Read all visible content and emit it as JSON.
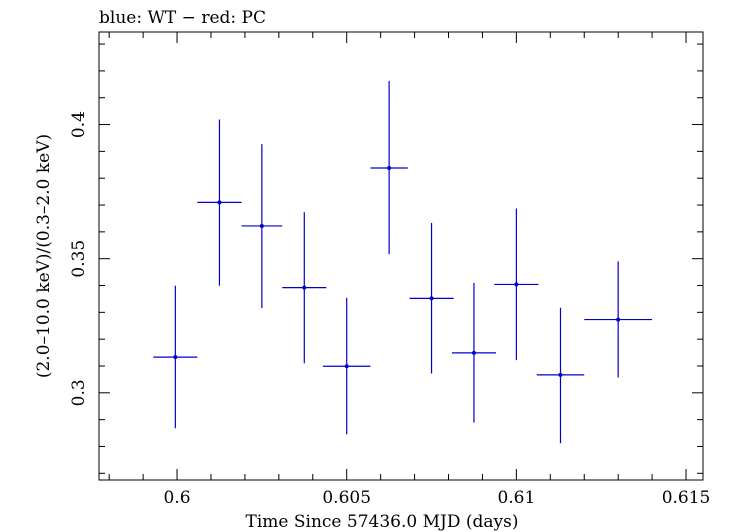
{
  "chart_data": {
    "type": "scatter",
    "title": "blue: WT − red: PC",
    "xlabel": "Time Since 57436.0 MJD (days)",
    "ylabel": "(2.0–10.0 keV)/(0.3–2.0 keV)",
    "xlim": [
      0.5977,
      0.6155
    ],
    "ylim": [
      0.2675,
      0.4345
    ],
    "xticks": [
      0.6,
      0.605,
      0.61,
      0.615
    ],
    "xtick_labels": [
      "0.6",
      "0.605",
      "0.61",
      "0.615"
    ],
    "yticks": [
      0.3,
      0.35,
      0.4
    ],
    "ytick_labels": [
      "0.3",
      "0.35",
      "0.4"
    ],
    "grid": false,
    "series": [
      {
        "color": "#0000cc",
        "points": [
          {
            "x": 0.59995,
            "xerr": 0.00065,
            "y": 0.3133,
            "yerr_low": 0.0265,
            "yerr_high": 0.0266
          },
          {
            "x": 0.60125,
            "xerr": 0.00065,
            "y": 0.371,
            "yerr_low": 0.0311,
            "yerr_high": 0.0309
          },
          {
            "x": 0.6025,
            "xerr": 0.0006,
            "y": 0.3622,
            "yerr_low": 0.0306,
            "yerr_high": 0.0305
          },
          {
            "x": 0.60375,
            "xerr": 0.00065,
            "y": 0.3392,
            "yerr_low": 0.0282,
            "yerr_high": 0.0281
          },
          {
            "x": 0.605,
            "xerr": 0.0007,
            "y": 0.3099,
            "yerr_low": 0.0254,
            "yerr_high": 0.0255
          },
          {
            "x": 0.60625,
            "xerr": 0.00055,
            "y": 0.3838,
            "yerr_low": 0.0321,
            "yerr_high": 0.0325
          },
          {
            "x": 0.6075,
            "xerr": 0.00065,
            "y": 0.3352,
            "yerr_low": 0.028,
            "yerr_high": 0.0281
          },
          {
            "x": 0.60875,
            "xerr": 0.00065,
            "y": 0.3149,
            "yerr_low": 0.026,
            "yerr_high": 0.0261
          },
          {
            "x": 0.61,
            "xerr": 0.00065,
            "y": 0.3404,
            "yerr_low": 0.0282,
            "yerr_high": 0.0283
          },
          {
            "x": 0.6113,
            "xerr": 0.0007,
            "y": 0.3067,
            "yerr_low": 0.0255,
            "yerr_high": 0.025
          },
          {
            "x": 0.613,
            "xerr": 0.001,
            "y": 0.3273,
            "yerr_low": 0.0216,
            "yerr_high": 0.0217
          }
        ]
      }
    ]
  }
}
